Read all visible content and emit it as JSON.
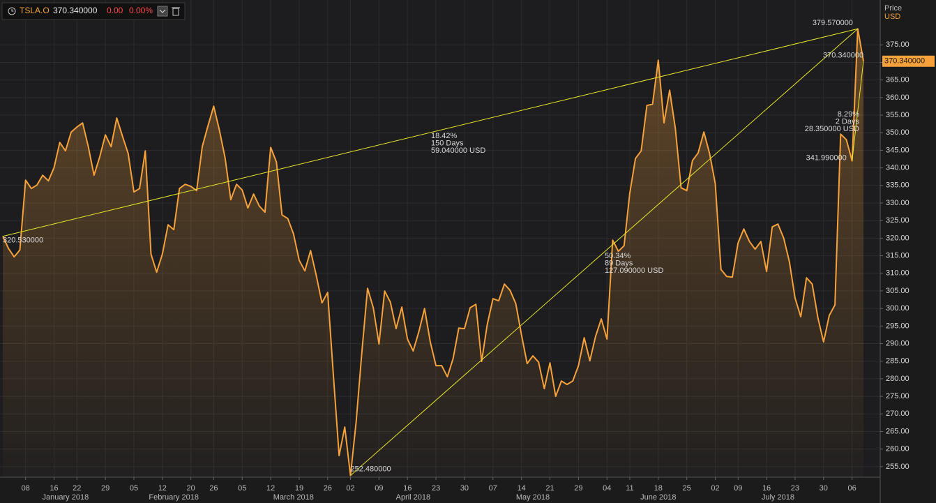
{
  "header": {
    "symbol": "TSLA.O",
    "price": "370.340000",
    "change": "0.00",
    "change_pct": "0.00%"
  },
  "chart_data": {
    "type": "area-line",
    "axis_title": "Price",
    "axis_unit": "USD",
    "ylim": [
      252,
      382
    ],
    "yticks": [
      {
        "value": 255,
        "label": "255.00"
      },
      {
        "value": 260,
        "label": "260.00"
      },
      {
        "value": 265,
        "label": "265.00"
      },
      {
        "value": 270,
        "label": "270.00"
      },
      {
        "value": 275,
        "label": "275.00"
      },
      {
        "value": 280,
        "label": "280.00"
      },
      {
        "value": 285,
        "label": "285.00"
      },
      {
        "value": 290,
        "label": "290.00"
      },
      {
        "value": 295,
        "label": "295.00"
      },
      {
        "value": 300,
        "label": "300.00"
      },
      {
        "value": 305,
        "label": "305.00"
      },
      {
        "value": 310,
        "label": "310.00"
      },
      {
        "value": 315,
        "label": "315.00"
      },
      {
        "value": 320,
        "label": "320.00"
      },
      {
        "value": 325,
        "label": "325.00"
      },
      {
        "value": 330,
        "label": "330.00"
      },
      {
        "value": 335,
        "label": "335.00"
      },
      {
        "value": 340,
        "label": "340.00"
      },
      {
        "value": 345,
        "label": "345.00"
      },
      {
        "value": 350,
        "label": "350.00"
      },
      {
        "value": 355,
        "label": "355.00"
      },
      {
        "value": 360,
        "label": "360.00"
      },
      {
        "value": 365,
        "label": "365.00"
      },
      {
        "value": 370,
        "label": "370.00"
      },
      {
        "value": 375,
        "label": "375.00"
      }
    ],
    "grid": true,
    "color": "#f7a13a",
    "trend_color": "#e8e82a",
    "categories": [
      null,
      null,
      null,
      null,
      "08",
      null,
      null,
      null,
      null,
      "16",
      null,
      null,
      null,
      "22",
      null,
      null,
      null,
      null,
      "29",
      null,
      null,
      null,
      null,
      "05",
      null,
      null,
      null,
      null,
      "12",
      null,
      null,
      null,
      null,
      "20",
      null,
      null,
      null,
      "26",
      null,
      null,
      null,
      null,
      "05",
      null,
      null,
      null,
      null,
      "12",
      null,
      null,
      null,
      null,
      "19",
      null,
      null,
      null,
      null,
      "26",
      null,
      null,
      null,
      "02",
      null,
      null,
      null,
      null,
      "09",
      null,
      null,
      null,
      null,
      "16",
      null,
      null,
      null,
      null,
      "23",
      null,
      null,
      null,
      null,
      "30",
      null,
      null,
      null,
      null,
      "07",
      null,
      null,
      null,
      null,
      "14",
      null,
      null,
      null,
      null,
      "21",
      null,
      null,
      null,
      null,
      "29",
      null,
      null,
      null,
      null,
      "04",
      null,
      null,
      null,
      "11",
      null,
      null,
      null,
      null,
      "18",
      null,
      null,
      null,
      null,
      "25",
      null,
      null,
      null,
      null,
      "02",
      null,
      null,
      null,
      "09",
      null,
      null,
      null,
      null,
      "16",
      null,
      null,
      null,
      null,
      "23",
      null,
      null,
      null,
      null,
      "30",
      null,
      null,
      null,
      null,
      "06",
      null,
      null
    ],
    "month_categories": [
      null,
      null,
      null,
      null,
      null,
      null,
      null,
      null,
      null,
      null,
      null,
      "January 2018",
      null,
      null,
      null,
      null,
      null,
      null,
      null,
      null,
      null,
      null,
      null,
      null,
      null,
      null,
      null,
      null,
      null,
      null,
      "February 2018",
      null,
      null,
      null,
      null,
      null,
      null,
      null,
      null,
      null,
      null,
      null,
      null,
      null,
      null,
      null,
      null,
      null,
      null,
      null,
      null,
      "March 2018",
      null,
      null,
      null,
      null,
      null,
      null,
      null,
      null,
      null,
      null,
      null,
      null,
      null,
      null,
      null,
      null,
      null,
      null,
      null,
      null,
      "April 2018",
      null,
      null,
      null,
      null,
      null,
      null,
      null,
      null,
      null,
      null,
      null,
      null,
      null,
      null,
      null,
      null,
      null,
      null,
      null,
      null,
      "May 2018",
      null,
      null,
      null,
      null,
      null,
      null,
      null,
      null,
      null,
      null,
      null,
      null,
      null,
      null,
      null,
      null,
      null,
      null,
      null,
      null,
      null,
      "June 2018",
      null,
      null,
      null,
      null,
      null,
      null,
      null,
      null,
      null,
      null,
      null,
      null,
      null,
      null,
      null,
      null,
      null,
      null,
      null,
      null,
      "July 2018",
      null,
      null,
      null,
      null,
      null,
      null,
      null,
      null,
      null,
      null,
      null,
      null,
      null,
      null,
      null
    ],
    "values": [
      320.53,
      317.06,
      314.68,
      316.67,
      336.51,
      334.13,
      335.12,
      337.9,
      336.31,
      340.08,
      347.22,
      344.84,
      350.2,
      351.59,
      352.78,
      346.03,
      337.9,
      343.06,
      349.4,
      346.03,
      354.17,
      349.01,
      344.05,
      333.13,
      334.13,
      344.84,
      315.48,
      310.32,
      315.48,
      323.81,
      322.42,
      334.13,
      335.32,
      334.72,
      333.53,
      346.03,
      351.98,
      357.54,
      350.79,
      342.86,
      330.95,
      335.32,
      333.73,
      328.57,
      332.54,
      329.17,
      327.38,
      345.83,
      341.67,
      326.59,
      325.6,
      321.23,
      313.69,
      310.71,
      316.47,
      309.33,
      301.59,
      304.56,
      280.95,
      258.13,
      266.27,
      252.48,
      267.86,
      287.5,
      305.75,
      300.2,
      289.88,
      304.96,
      301.79,
      294.25,
      300.4,
      291.27,
      287.9,
      293.45,
      300.0,
      290.48,
      283.73,
      283.73,
      280.56,
      285.71,
      294.44,
      294.25,
      300.2,
      301.19,
      284.92,
      295.44,
      302.78,
      302.18,
      306.94,
      305.16,
      301.39,
      292.46,
      284.33,
      286.51,
      284.72,
      277.18,
      284.52,
      275.0,
      279.37,
      278.37,
      279.37,
      283.73,
      291.67,
      285.12,
      292.06,
      297.02,
      291.27,
      319.44,
      316.27,
      317.86,
      332.74,
      342.66,
      344.84,
      357.74,
      358.13,
      370.63,
      352.78,
      362.1,
      351.19,
      334.33,
      333.53,
      342.06,
      344.25,
      350.2,
      344.05,
      335.52,
      311.11,
      309.13,
      308.93,
      318.65,
      322.62,
      319.05,
      316.87,
      319.05,
      310.52,
      323.21,
      324.01,
      320.04,
      313.29,
      302.98,
      297.62,
      308.73,
      306.94,
      297.42,
      290.48,
      298.02,
      301.0,
      349.6,
      348.02,
      341.99,
      379.57,
      370.34
    ],
    "point_labels": [
      {
        "value": 320.53,
        "label": "320.530000"
      },
      {
        "value": 252.48,
        "label": "252.480000"
      },
      {
        "value": 379.57,
        "label": "379.570000"
      },
      {
        "value": 370.34,
        "label": "370.340000"
      },
      {
        "value": 341.99,
        "label": "341.990000"
      }
    ],
    "trendlines": [
      {
        "start": 320.53,
        "end": 379.57,
        "percent": "18.42%",
        "days": "150 Days",
        "change": "59.040000 USD"
      },
      {
        "start": 252.48,
        "end": 379.57,
        "percent": "50.34%",
        "days": "89 Days",
        "change": "127.090000 USD"
      },
      {
        "start": 341.99,
        "end": 370.34,
        "percent": "8.29%",
        "days": "2 Days",
        "change": "28.350000 USD"
      }
    ],
    "last_price": {
      "value": 370.34,
      "label": "370.340000"
    }
  }
}
